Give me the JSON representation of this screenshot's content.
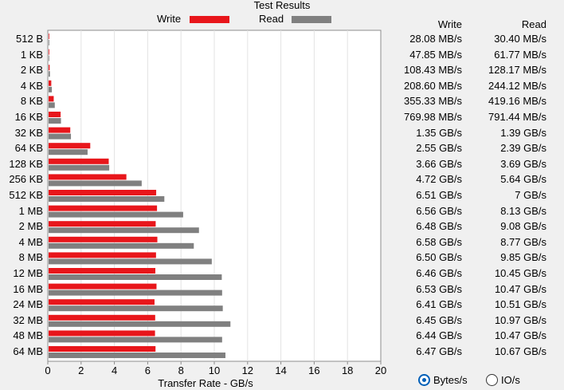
{
  "header": {
    "title": "Test Results"
  },
  "legend": {
    "write_label": "Write",
    "read_label": "Read",
    "write_color": "#e8161b",
    "read_color": "#808080"
  },
  "table": {
    "write_header": "Write",
    "read_header": "Read",
    "rows": [
      {
        "size": "512 B",
        "write": "28.08 MB/s",
        "read": "30.40 MB/s"
      },
      {
        "size": "1 KB",
        "write": "47.85 MB/s",
        "read": "61.77 MB/s"
      },
      {
        "size": "2 KB",
        "write": "108.43 MB/s",
        "read": "128.17 MB/s"
      },
      {
        "size": "4 KB",
        "write": "208.60 MB/s",
        "read": "244.12 MB/s"
      },
      {
        "size": "8 KB",
        "write": "355.33 MB/s",
        "read": "419.16 MB/s"
      },
      {
        "size": "16 KB",
        "write": "769.98 MB/s",
        "read": "791.44 MB/s"
      },
      {
        "size": "32 KB",
        "write": "1.35 GB/s",
        "read": "1.39 GB/s"
      },
      {
        "size": "64 KB",
        "write": "2.55 GB/s",
        "read": "2.39 GB/s"
      },
      {
        "size": "128 KB",
        "write": "3.66 GB/s",
        "read": "3.69 GB/s"
      },
      {
        "size": "256 KB",
        "write": "4.72 GB/s",
        "read": "5.64 GB/s"
      },
      {
        "size": "512 KB",
        "write": "6.51 GB/s",
        "read": "7 GB/s"
      },
      {
        "size": "1 MB",
        "write": "6.56 GB/s",
        "read": "8.13 GB/s"
      },
      {
        "size": "2 MB",
        "write": "6.48 GB/s",
        "read": "9.08 GB/s"
      },
      {
        "size": "4 MB",
        "write": "6.58 GB/s",
        "read": "8.77 GB/s"
      },
      {
        "size": "8 MB",
        "write": "6.50 GB/s",
        "read": "9.85 GB/s"
      },
      {
        "size": "12 MB",
        "write": "6.46 GB/s",
        "read": "10.45 GB/s"
      },
      {
        "size": "16 MB",
        "write": "6.53 GB/s",
        "read": "10.47 GB/s"
      },
      {
        "size": "24 MB",
        "write": "6.41 GB/s",
        "read": "10.51 GB/s"
      },
      {
        "size": "32 MB",
        "write": "6.45 GB/s",
        "read": "10.97 GB/s"
      },
      {
        "size": "48 MB",
        "write": "6.44 GB/s",
        "read": "10.47 GB/s"
      },
      {
        "size": "64 MB",
        "write": "6.47 GB/s",
        "read": "10.67 GB/s"
      }
    ]
  },
  "units": {
    "bytes_label": "Bytes/s",
    "io_label": "IO/s",
    "selected": "Bytes/s"
  },
  "chart_data": {
    "type": "bar",
    "orientation": "horizontal",
    "title": "Test Results",
    "xlabel": "Transfer Rate - GB/s",
    "xlim": [
      0,
      20
    ],
    "xticks": [
      0,
      2,
      4,
      6,
      8,
      10,
      12,
      14,
      16,
      18,
      20
    ],
    "grid": true,
    "legend_position": "top",
    "categories": [
      "512 B",
      "1 KB",
      "2 KB",
      "4 KB",
      "8 KB",
      "16 KB",
      "32 KB",
      "64 KB",
      "128 KB",
      "256 KB",
      "512 KB",
      "1 MB",
      "2 MB",
      "4 MB",
      "8 MB",
      "12 MB",
      "16 MB",
      "24 MB",
      "32 MB",
      "48 MB",
      "64 MB"
    ],
    "series": [
      {
        "name": "Write",
        "color": "#e8161b",
        "values": [
          0.02808,
          0.04785,
          0.10843,
          0.2086,
          0.35533,
          0.76998,
          1.35,
          2.55,
          3.66,
          4.72,
          6.51,
          6.56,
          6.48,
          6.58,
          6.5,
          6.46,
          6.53,
          6.41,
          6.45,
          6.44,
          6.47
        ]
      },
      {
        "name": "Read",
        "color": "#808080",
        "values": [
          0.0304,
          0.06177,
          0.12817,
          0.24412,
          0.41916,
          0.79144,
          1.39,
          2.39,
          3.69,
          5.64,
          7,
          8.13,
          9.08,
          8.77,
          9.85,
          10.45,
          10.47,
          10.51,
          10.97,
          10.47,
          10.67
        ]
      }
    ]
  }
}
